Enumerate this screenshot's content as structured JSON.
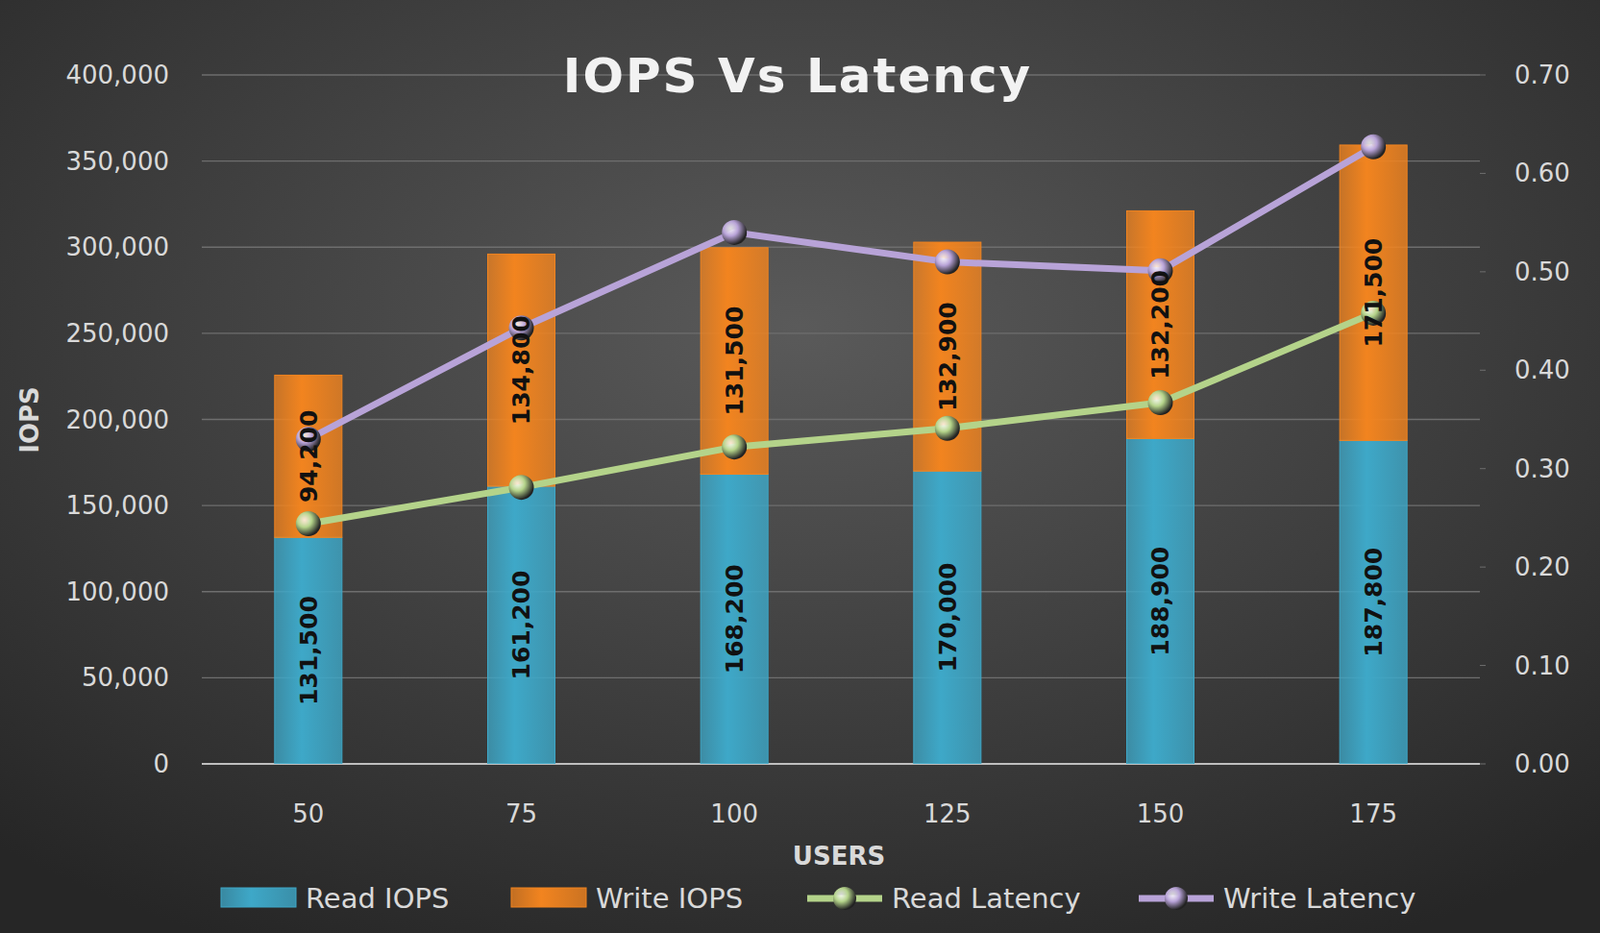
{
  "chart_data": {
    "type": "bar",
    "title": "IOPS Vs Latency",
    "x_label": "USERS",
    "y_label": "IOPS",
    "categories": [
      "50",
      "75",
      "100",
      "125",
      "150",
      "175"
    ],
    "stacked": true,
    "data_labels": true,
    "grid": true,
    "legend": "bottom",
    "ylim": [
      0,
      400000
    ],
    "yticks": [
      0,
      {
        "value": 50000,
        "label": "50,000"
      },
      {
        "value": 100000,
        "label": "100,000"
      },
      {
        "value": 150000,
        "label": "150,000"
      },
      {
        "value": 200000,
        "label": "200,000"
      },
      {
        "value": 250000,
        "label": "250,000"
      },
      {
        "value": 300000,
        "label": "300,000"
      },
      {
        "value": 350000,
        "label": "350,000"
      },
      {
        "value": 400000,
        "label": "400,000"
      }
    ],
    "y2lim": [
      0,
      0.7
    ],
    "y2ticks": [
      {
        "value": 0,
        "label": "0.00"
      },
      {
        "value": 0.1,
        "label": "0.10"
      },
      {
        "value": 0.2,
        "label": "0.20"
      },
      {
        "value": 0.3,
        "label": "0.30"
      },
      {
        "value": 0.4,
        "label": "0.40"
      },
      {
        "value": 0.5,
        "label": "0.50"
      },
      {
        "value": 0.6,
        "label": "0.60"
      },
      {
        "value": 0.7,
        "label": "0.70"
      }
    ],
    "series": [
      {
        "name": "Read IOPS",
        "type": "bar",
        "color": "#3ea8c8",
        "values": [
          131500,
          161200,
          168200,
          170000,
          188900,
          187800
        ],
        "value_labels": [
          "131,500",
          "161,200",
          "168,200",
          "170,000",
          "188,900",
          "187,800"
        ]
      },
      {
        "name": "Write IOPS",
        "type": "bar",
        "color": "#f2841f",
        "values": [
          94200,
          134800,
          131500,
          132900,
          132200,
          171500
        ],
        "value_labels": [
          "94,200",
          "134,800",
          "131,500",
          "132,900",
          "132,200",
          "171,500"
        ]
      },
      {
        "name": "Read Latency",
        "type": "line",
        "axis": "y2",
        "color": "#b4d38a",
        "marker": "circle",
        "values": [
          0.244,
          0.281,
          0.322,
          0.341,
          0.367,
          0.458
        ]
      },
      {
        "name": "Write Latency",
        "type": "line",
        "axis": "y2",
        "color": "#b8a3d8",
        "marker": "circle",
        "values": [
          0.33,
          0.443,
          0.54,
          0.51,
          0.501,
          0.627
        ]
      }
    ]
  }
}
